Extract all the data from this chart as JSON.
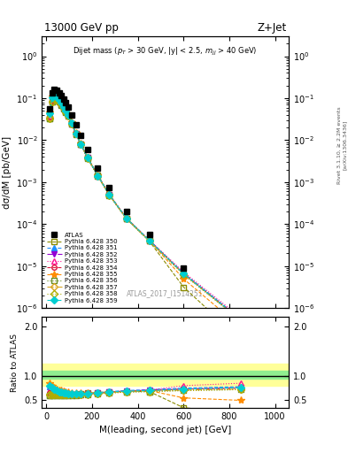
{
  "title_left": "13000 GeV pp",
  "title_right": "Z+Jet",
  "inner_title": "Dijet mass ($p_T$ > 30 GeV, |y| < 2.5, $m_{jj}$ > 40 GeV)",
  "watermark": "ATLAS_2017_I1514251",
  "right_text1": "Rivet 3.1.10, ≥ 2.2M events",
  "right_text2": "[arXiv:1306.3436]",
  "ylabel_main": "dσ/dM [pb/GeV]",
  "ylabel_ratio": "Ratio to ATLAS",
  "xlabel": "M(leading, second jet) [GeV]",
  "atlas_x": [
    15,
    25,
    35,
    45,
    55,
    65,
    75,
    85,
    95,
    110,
    130,
    150,
    180,
    225,
    275,
    350,
    450,
    600,
    850
  ],
  "atlas_y": [
    0.055,
    0.135,
    0.16,
    0.152,
    0.135,
    0.115,
    0.095,
    0.077,
    0.062,
    0.04,
    0.023,
    0.013,
    0.006,
    0.0022,
    0.00075,
    0.0002,
    5.8e-05,
    9e-06,
    7e-07
  ],
  "mc_base_y": [
    0.033,
    0.082,
    0.095,
    0.09,
    0.08,
    0.068,
    0.056,
    0.046,
    0.037,
    0.024,
    0.014,
    0.0082,
    0.0036,
    0.0013,
    0.00044,
    0.00012,
    3.5e-05,
    5.5e-06,
    4.2e-07
  ],
  "mc_colors": [
    "#8B8B00",
    "#1E90FF",
    "#9400D3",
    "#FF1493",
    "#DC143C",
    "#FF8C00",
    "#6B8E23",
    "#DAA520",
    "#ADAD00",
    "#00CED1"
  ],
  "mc_labels": [
    "Pythia 6.428 350",
    "Pythia 6.428 351",
    "Pythia 6.428 352",
    "Pythia 6.428 353",
    "Pythia 6.428 354",
    "Pythia 6.428 355",
    "Pythia 6.428 356",
    "Pythia 6.428 357",
    "Pythia 6.428 358",
    "Pythia 6.428 359"
  ],
  "mc_linestyles": [
    "--",
    "--",
    "-.",
    ":",
    "--",
    "--",
    ":",
    "-.",
    ":",
    "--"
  ],
  "mc_markers": [
    "s",
    "^",
    "v",
    "^",
    "o",
    "*",
    "s",
    "D",
    "D",
    "D"
  ],
  "mc_marker_open": [
    true,
    false,
    false,
    true,
    true,
    false,
    true,
    true,
    true,
    false
  ],
  "mc_scales": [
    1.0,
    1.02,
    1.0,
    0.98,
    1.05,
    1.12,
    0.97,
    1.0,
    0.99,
    1.01
  ],
  "mc_high_factors_350": [
    1.0,
    1.0,
    1.0,
    1.0,
    1.0,
    1.0,
    1.0,
    0.45,
    0.8,
    1.2
  ],
  "mc_high_factors_355": [
    1.0,
    1.0,
    1.0,
    1.0,
    1.0,
    1.0,
    1.0,
    1.0,
    1.0,
    1.0
  ],
  "band_green_lo": 0.95,
  "band_green_hi": 1.1,
  "band_yellow_lo": 0.8,
  "band_yellow_hi": 1.25,
  "ylim_main": [
    1e-06,
    3.0
  ],
  "ylim_ratio": [
    0.35,
    2.2
  ],
  "yticks_ratio": [
    0.5,
    1.0,
    2.0
  ],
  "xlim": [
    -20,
    1060
  ]
}
